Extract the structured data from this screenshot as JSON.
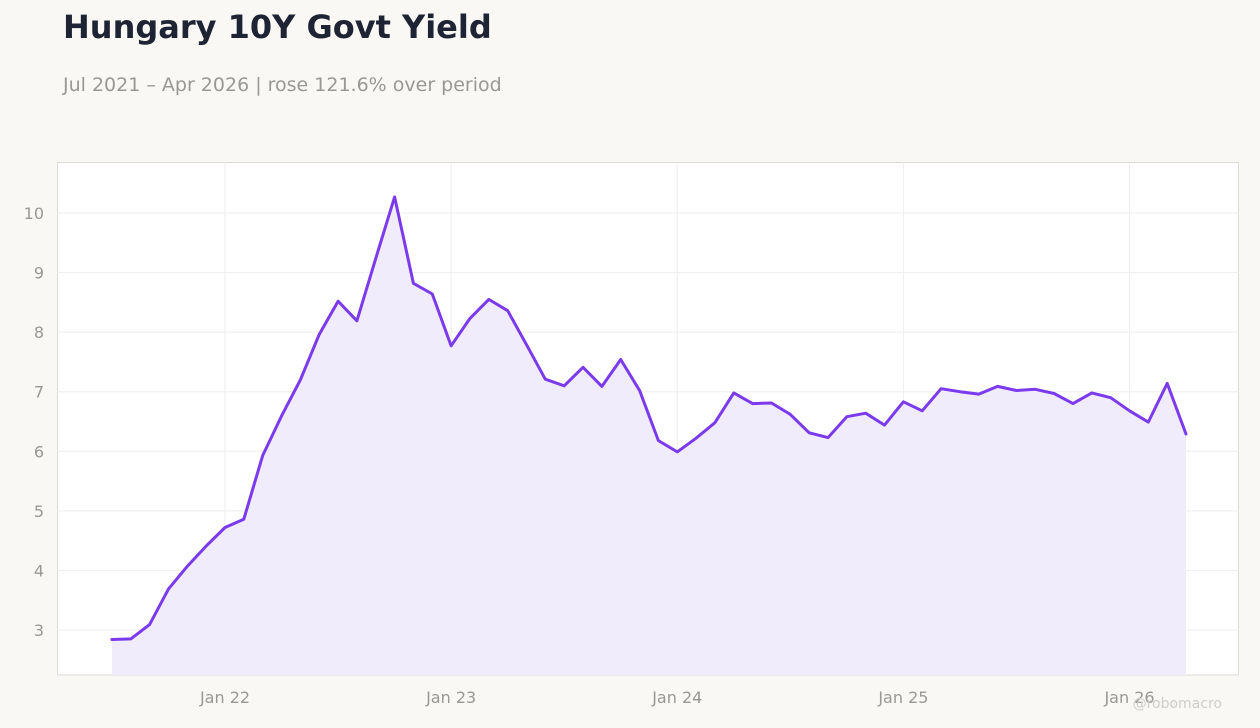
{
  "title": "Hungary 10Y Govt Yield",
  "subtitle": "Jul 2021 – Apr 2026 | rose 121.6% over period",
  "watermark": "@robomacro",
  "colors": {
    "line": "#7c3aed",
    "fill": "#f1ecfc",
    "grid": "#eeeeee",
    "tick_text": "#999893",
    "plot_border": "#dddbd6",
    "background": "#f9f8f5"
  },
  "chart_data": {
    "type": "area",
    "title": "Hungary 10Y Govt Yield",
    "subtitle": "Jul 2021 – Apr 2026 | rose 121.6% over period",
    "xlabel": "",
    "ylabel": "",
    "ylim": [
      2.25,
      10.85
    ],
    "grid": true,
    "legend": "none",
    "x_ticks": [
      "Jan 22",
      "Jan 23",
      "Jan 24",
      "Jan 25",
      "Jan 26"
    ],
    "y_ticks": [
      3,
      4,
      5,
      6,
      7,
      8,
      9,
      10
    ],
    "x": [
      "2021-07",
      "2021-08",
      "2021-09",
      "2021-10",
      "2021-11",
      "2021-12",
      "2022-01",
      "2022-02",
      "2022-03",
      "2022-04",
      "2022-05",
      "2022-06",
      "2022-07",
      "2022-08",
      "2022-09",
      "2022-10",
      "2022-11",
      "2022-12",
      "2023-01",
      "2023-02",
      "2023-03",
      "2023-04",
      "2023-05",
      "2023-06",
      "2023-07",
      "2023-08",
      "2023-09",
      "2023-10",
      "2023-11",
      "2023-12",
      "2024-01",
      "2024-02",
      "2024-03",
      "2024-04",
      "2024-05",
      "2024-06",
      "2024-07",
      "2024-08",
      "2024-09",
      "2024-10",
      "2024-11",
      "2024-12",
      "2025-01",
      "2025-02",
      "2025-03",
      "2025-04",
      "2025-05",
      "2025-06",
      "2025-07",
      "2025-08",
      "2025-09",
      "2025-10",
      "2025-11",
      "2025-12",
      "2026-01",
      "2026-02",
      "2026-03",
      "2026-04"
    ],
    "values": [
      2.84,
      2.85,
      3.09,
      3.69,
      4.07,
      4.41,
      4.72,
      4.86,
      5.93,
      6.59,
      7.2,
      7.96,
      8.52,
      8.19,
      9.24,
      10.27,
      8.82,
      8.64,
      7.77,
      8.23,
      8.55,
      8.36,
      7.79,
      7.21,
      7.1,
      7.41,
      7.09,
      7.54,
      7.02,
      6.18,
      5.99,
      6.22,
      6.48,
      6.98,
      6.8,
      6.81,
      6.62,
      6.31,
      6.23,
      6.58,
      6.64,
      6.44,
      6.83,
      6.68,
      7.05,
      7.0,
      6.96,
      7.09,
      7.02,
      7.04,
      6.97,
      6.8,
      6.98,
      6.9,
      6.68,
      6.49,
      7.14,
      6.29
    ]
  }
}
